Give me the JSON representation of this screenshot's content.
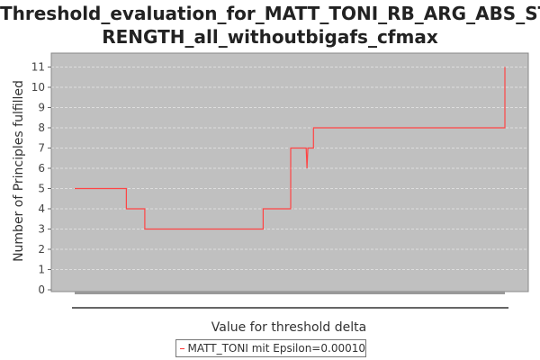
{
  "chart_data": {
    "type": "line",
    "title_line1": "Threshold_evaluation_for_MATT_TONI_RB_ARG_ABS_ST",
    "title_line2": "RENGTH_all_withoutbigafs_cfmax",
    "xlabel": "Value for threshold delta",
    "ylabel": "Number of Principles fulfilled",
    "ylim": [
      0,
      11.5
    ],
    "yticks": [
      "0",
      "1",
      "2",
      "3",
      "4",
      "5",
      "6",
      "7",
      "8",
      "9",
      "10",
      "11"
    ],
    "xlim": [
      0,
      1
    ],
    "grid": true,
    "legend_position": "bottom-center",
    "series": [
      {
        "name": "MATT_TONI mit Epsilon=0.00010",
        "color": "#ff4444",
        "points": [
          [
            0.0,
            5
          ],
          [
            0.12,
            5
          ],
          [
            0.12,
            4
          ],
          [
            0.163,
            4
          ],
          [
            0.163,
            3
          ],
          [
            0.438,
            3
          ],
          [
            0.438,
            4
          ],
          [
            0.502,
            4
          ],
          [
            0.502,
            7
          ],
          [
            0.538,
            7
          ],
          [
            0.54,
            6
          ],
          [
            0.542,
            7
          ],
          [
            0.555,
            7
          ],
          [
            0.555,
            8
          ],
          [
            1.0,
            8
          ],
          [
            1.0,
            11
          ]
        ]
      }
    ]
  },
  "colors": {
    "plot_background": "#c0c0c0",
    "grid": "#e8e8e8",
    "series": "#ff4444"
  }
}
